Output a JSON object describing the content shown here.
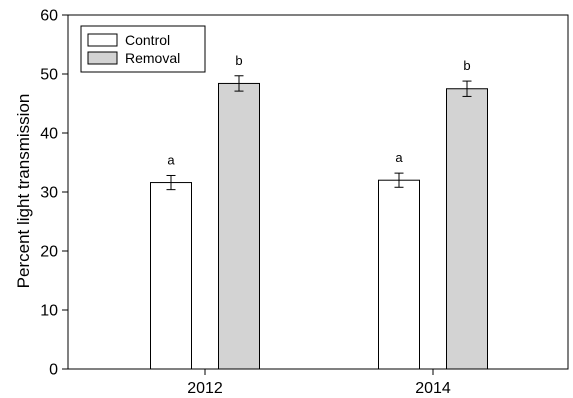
{
  "chart_data": {
    "type": "bar",
    "title": "",
    "xlabel": "",
    "ylabel": "Percent light transmission",
    "categories": [
      "2012",
      "2014"
    ],
    "ylim": [
      0,
      60
    ],
    "yticks": [
      0,
      10,
      20,
      30,
      40,
      50,
      60
    ],
    "grid": false,
    "legend_position": "top-left",
    "series": [
      {
        "name": "Control",
        "color": "#ffffff",
        "values": [
          31.6,
          32.0
        ],
        "error": [
          1.2,
          1.2
        ],
        "letters": [
          "a",
          "a"
        ]
      },
      {
        "name": "Removal",
        "color": "#d3d3d3",
        "values": [
          48.4,
          47.5
        ],
        "error": [
          1.3,
          1.3
        ],
        "letters": [
          "b",
          "b"
        ]
      }
    ]
  }
}
